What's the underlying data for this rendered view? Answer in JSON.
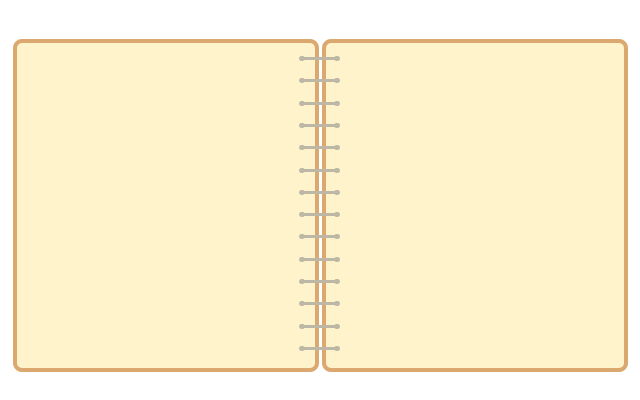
{
  "colors": {
    "page_border": "#dba970",
    "page_fill": "#fff3cc",
    "ring": "#bdb7a6",
    "background": "#ffffff"
  },
  "notebook": {
    "left_page_text": "",
    "right_page_text": "",
    "binding_ring_count": 14,
    "binding_icon": "spiral-binding-icon"
  }
}
